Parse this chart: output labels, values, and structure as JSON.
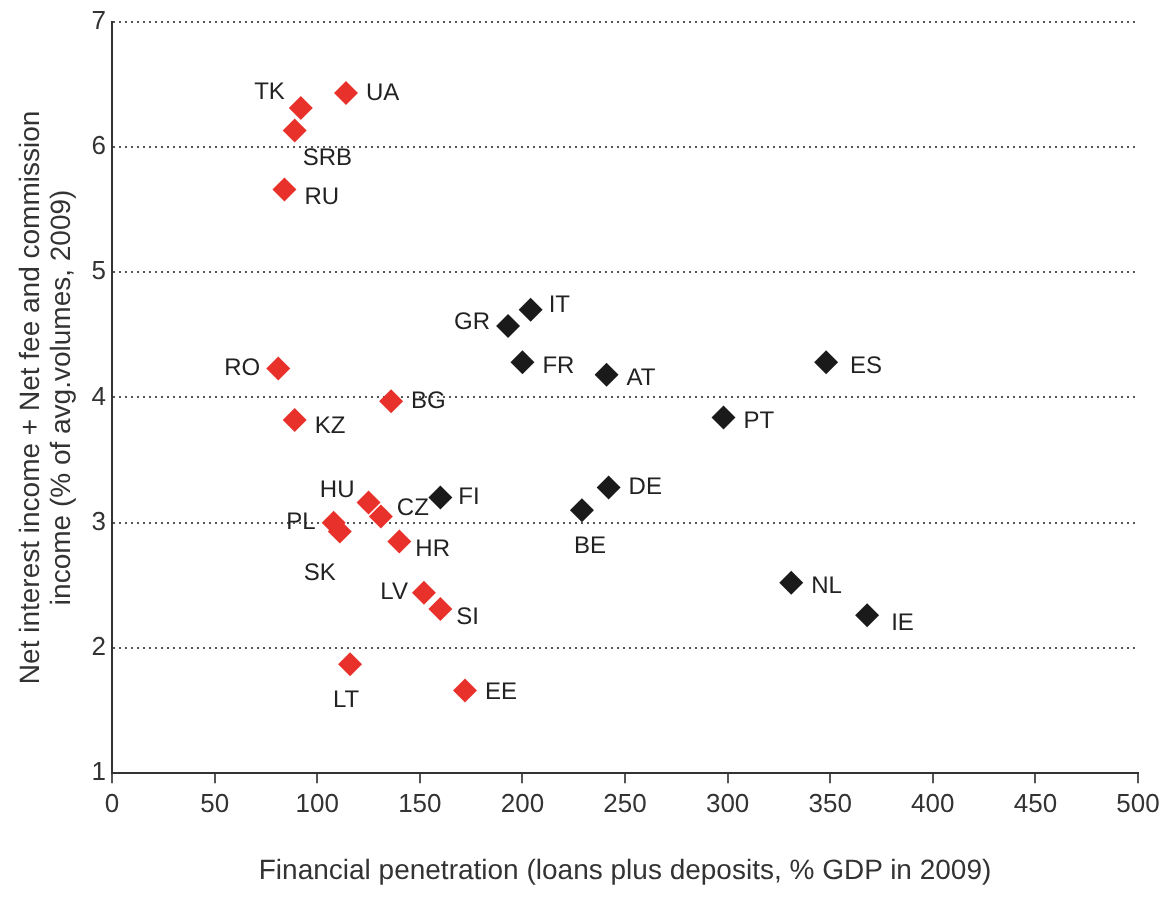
{
  "chart_data": {
    "type": "scatter",
    "xlabel": "Financial penetration (loans plus deposits, % GDP in 2009)",
    "ylabel": "Net interest income + Net fee and commission income (% of avg.volumes, 2009)",
    "xlim": [
      0,
      500
    ],
    "xticks": [
      0,
      50,
      100,
      150,
      200,
      250,
      300,
      350,
      400,
      450,
      500
    ],
    "ylim": [
      1,
      7
    ],
    "yticks": [
      1,
      2,
      3,
      4,
      5,
      6,
      7
    ],
    "grid": "y",
    "marker": "diamond",
    "series": [
      {
        "color": "#e8312a",
        "x": [
          92,
          114,
          89,
          84,
          81,
          89,
          136,
          125,
          131,
          108,
          111,
          140,
          152,
          160,
          116,
          172
        ],
        "values": [
          6.31,
          6.43,
          6.13,
          5.66,
          4.23,
          3.82,
          3.97,
          3.16,
          3.05,
          3.0,
          2.93,
          2.85,
          2.44,
          2.31,
          1.87,
          1.66
        ]
      },
      {
        "color": "#1a1a1a",
        "x": [
          193,
          204,
          200,
          241,
          348,
          298,
          160,
          242,
          229,
          331,
          368
        ],
        "values": [
          4.57,
          4.7,
          4.28,
          4.18,
          4.28,
          3.84,
          3.2,
          3.28,
          3.1,
          2.52,
          2.26
        ]
      }
    ],
    "annotations": [
      {
        "text": "TK",
        "x": 92,
        "y": 6.31
      },
      {
        "text": "UA",
        "x": 114,
        "y": 6.43
      },
      {
        "text": "SRB",
        "x": 89,
        "y": 6.13
      },
      {
        "text": "RU",
        "x": 84,
        "y": 5.66
      },
      {
        "text": "RO",
        "x": 81,
        "y": 4.23
      },
      {
        "text": "KZ",
        "x": 89,
        "y": 3.82
      },
      {
        "text": "BG",
        "x": 136,
        "y": 3.97
      },
      {
        "text": "HU",
        "x": 125,
        "y": 3.16
      },
      {
        "text": "CZ",
        "x": 131,
        "y": 3.05
      },
      {
        "text": "PL",
        "x": 108,
        "y": 3.0
      },
      {
        "text": "SK",
        "x": 111,
        "y": 2.93
      },
      {
        "text": "HR",
        "x": 140,
        "y": 2.85
      },
      {
        "text": "LV",
        "x": 152,
        "y": 2.44
      },
      {
        "text": "SI",
        "x": 160,
        "y": 2.31
      },
      {
        "text": "LT",
        "x": 116,
        "y": 1.87
      },
      {
        "text": "EE",
        "x": 172,
        "y": 1.66
      },
      {
        "text": "GR",
        "x": 193,
        "y": 4.57
      },
      {
        "text": "IT",
        "x": 204,
        "y": 4.7
      },
      {
        "text": "FR",
        "x": 200,
        "y": 4.28
      },
      {
        "text": "AT",
        "x": 241,
        "y": 4.18
      },
      {
        "text": "ES",
        "x": 348,
        "y": 4.28
      },
      {
        "text": "PT",
        "x": 298,
        "y": 3.84
      },
      {
        "text": "FI",
        "x": 160,
        "y": 3.2
      },
      {
        "text": "DE",
        "x": 242,
        "y": 3.28
      },
      {
        "text": "BE",
        "x": 229,
        "y": 3.1
      },
      {
        "text": "NL",
        "x": 331,
        "y": 2.52
      },
      {
        "text": "IE",
        "x": 368,
        "y": 2.26
      }
    ]
  }
}
